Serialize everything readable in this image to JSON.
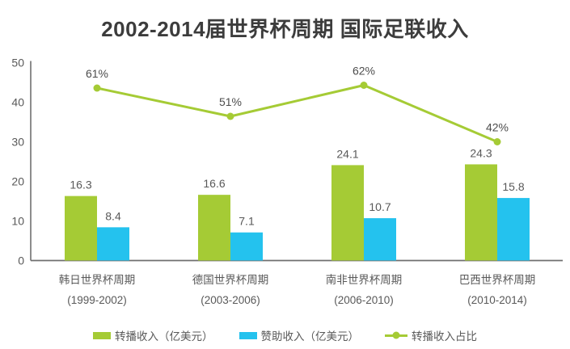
{
  "chart_data": {
    "type": "bar",
    "subtype": "bar-line-combo",
    "title": "2002-2014届世界杯周期 国际足联收入",
    "categories": [
      {
        "line1": "韩日世界杯周期",
        "line2": "(1999-2002)"
      },
      {
        "line1": "德国世界杯周期",
        "line2": "(2003-2006)"
      },
      {
        "line1": "南非世界杯周期",
        "line2": "(2006-2010)"
      },
      {
        "line1": "巴西世界杯周期",
        "line2": "(2010-2014)"
      }
    ],
    "series": [
      {
        "name": "转播收入（亿美元）",
        "type": "bar",
        "color": "#a5cb35",
        "values": [
          16.3,
          16.6,
          24.1,
          24.3
        ]
      },
      {
        "name": "赞助收入（亿美元）",
        "type": "bar",
        "color": "#24c2ee",
        "values": [
          8.4,
          7.1,
          10.7,
          15.8
        ]
      }
    ],
    "line_series": {
      "name": "转播收入占比",
      "type": "line",
      "color": "#a5cb35",
      "values_pct": [
        61,
        51,
        62,
        42
      ],
      "secondary_axis_max": 70
    },
    "y_axis": {
      "min": 0,
      "max": 50,
      "ticks": [
        0,
        10,
        20,
        30,
        40,
        50
      ]
    },
    "grid": false,
    "legend_position": "bottom"
  },
  "colors": {
    "title_text": "#3c3c3c",
    "axis_line": "#6f6f6f",
    "label_text": "#595959",
    "background": "#ffffff"
  }
}
